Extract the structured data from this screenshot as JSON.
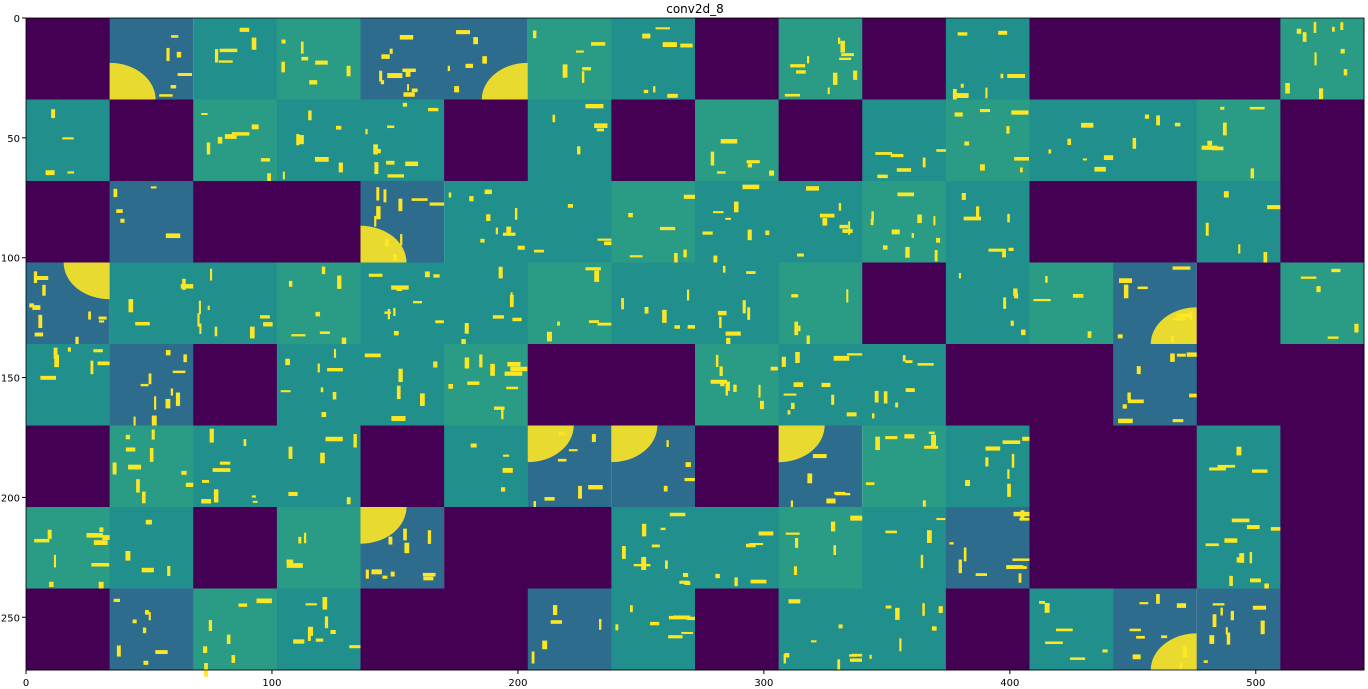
{
  "chart_data": {
    "type": "heatmap",
    "title": "conv2d_8",
    "xlabel": "",
    "ylabel": "",
    "xlim": [
      0,
      544
    ],
    "ylim": [
      272,
      0
    ],
    "grid": false,
    "colormap": "viridis",
    "colors": {
      "low": "#440154",
      "mid": "#21908c",
      "high": "#fde725",
      "blue_mid": "#2e6c8e",
      "teal_light": "#2a9c86"
    },
    "xticks": [
      0,
      100,
      200,
      300,
      400,
      500
    ],
    "yticks": [
      0,
      50,
      100,
      150,
      200,
      250
    ],
    "tile_grid": {
      "rows": 8,
      "cols": 16,
      "tile_size": 34,
      "dead_tiles": [
        [
          0,
          0
        ],
        [
          0,
          8
        ],
        [
          0,
          10
        ],
        [
          0,
          12
        ],
        [
          0,
          13
        ],
        [
          0,
          14
        ],
        [
          1,
          1
        ],
        [
          1,
          5
        ],
        [
          1,
          7
        ],
        [
          1,
          9
        ],
        [
          1,
          15
        ],
        [
          2,
          0
        ],
        [
          2,
          2
        ],
        [
          2,
          3
        ],
        [
          2,
          12
        ],
        [
          2,
          13
        ],
        [
          2,
          15
        ],
        [
          3,
          10
        ],
        [
          3,
          14
        ],
        [
          4,
          2
        ],
        [
          4,
          6
        ],
        [
          4,
          7
        ],
        [
          4,
          11
        ],
        [
          4,
          12
        ],
        [
          4,
          14
        ],
        [
          4,
          15
        ],
        [
          5,
          0
        ],
        [
          5,
          4
        ],
        [
          5,
          8
        ],
        [
          5,
          12
        ],
        [
          5,
          13
        ],
        [
          5,
          15
        ],
        [
          6,
          2
        ],
        [
          6,
          5
        ],
        [
          6,
          6
        ],
        [
          6,
          12
        ],
        [
          6,
          13
        ],
        [
          6,
          15
        ],
        [
          7,
          0
        ],
        [
          7,
          4
        ],
        [
          7,
          5
        ],
        [
          7,
          8
        ],
        [
          7,
          11
        ],
        [
          7,
          15
        ]
      ],
      "blue_tiles": [
        [
          0,
          1
        ],
        [
          0,
          4
        ],
        [
          0,
          5
        ],
        [
          2,
          1
        ],
        [
          2,
          4
        ],
        [
          3,
          0
        ],
        [
          3,
          13
        ],
        [
          4,
          1
        ],
        [
          4,
          13
        ],
        [
          5,
          6
        ],
        [
          5,
          7
        ],
        [
          5,
          9
        ],
        [
          6,
          4
        ],
        [
          6,
          11
        ],
        [
          7,
          1
        ],
        [
          7,
          6
        ],
        [
          7,
          13
        ],
        [
          7,
          14
        ]
      ],
      "yellow_tiles": [
        [
          0,
          1
        ],
        [
          0,
          5
        ],
        [
          2,
          4
        ],
        [
          3,
          0
        ],
        [
          3,
          13
        ],
        [
          5,
          6
        ],
        [
          5,
          7
        ],
        [
          5,
          9
        ],
        [
          6,
          4
        ],
        [
          7,
          13
        ]
      ]
    }
  }
}
